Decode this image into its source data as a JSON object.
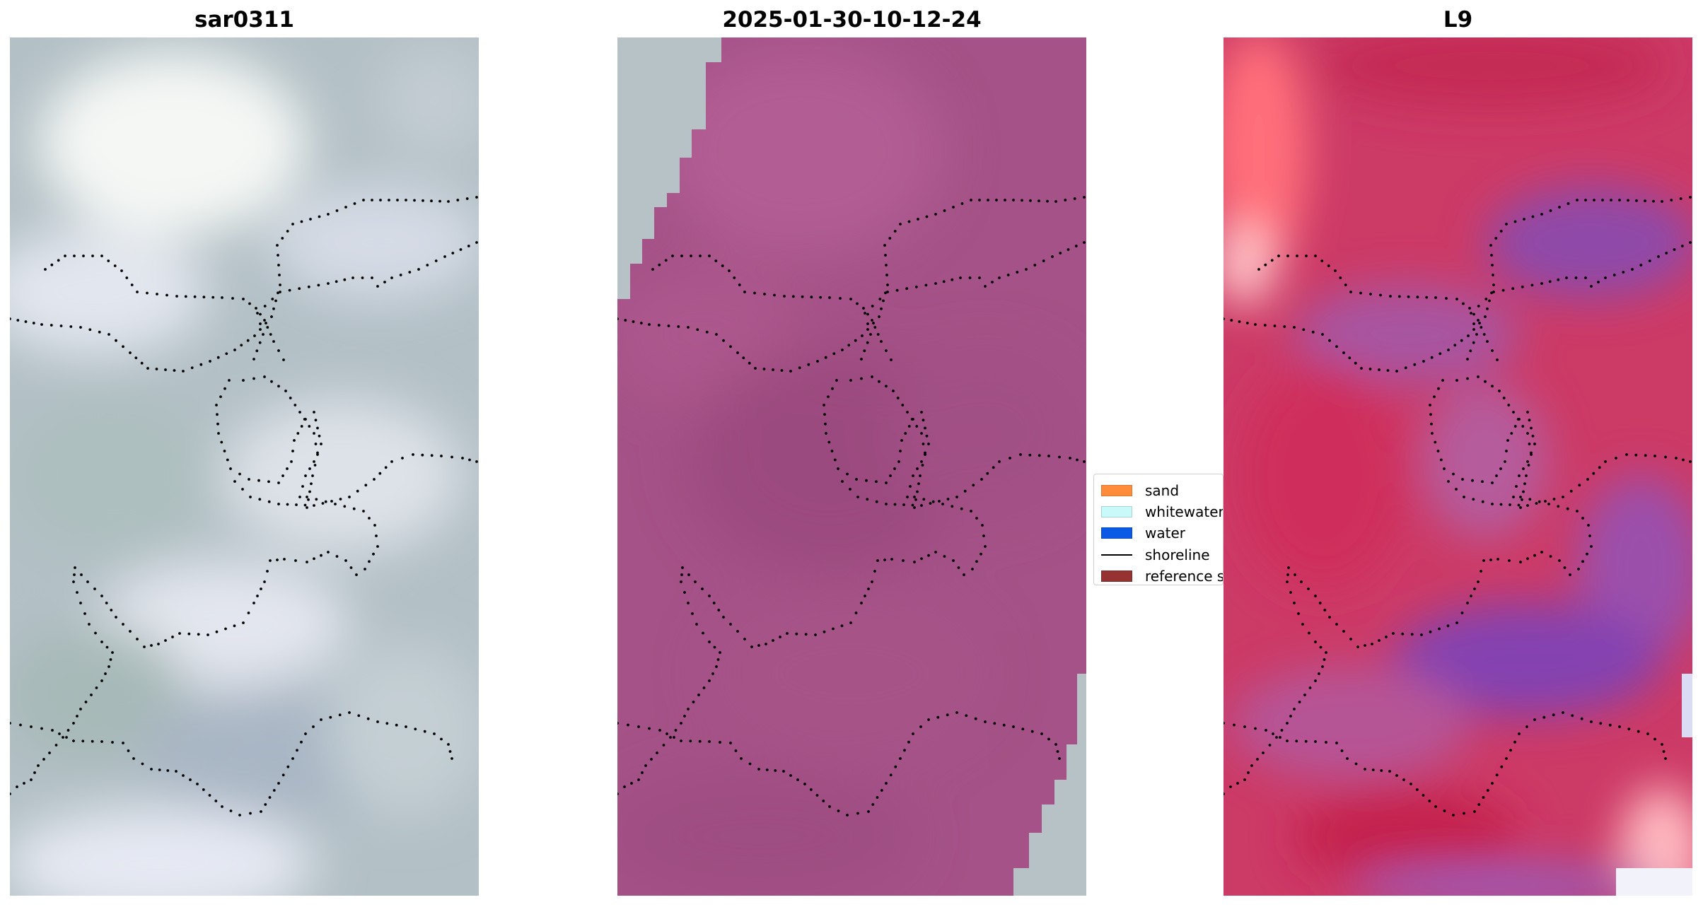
{
  "panels": [
    {
      "title": "sar0311",
      "kind": "greyscale-composite"
    },
    {
      "title": "2025-01-30-10-12-24",
      "kind": "classified-overlay"
    },
    {
      "title": "L9",
      "kind": "false-colour-composite"
    }
  ],
  "legend": {
    "items": [
      {
        "label": "sand",
        "color": "#ff8c3b",
        "type": "patch"
      },
      {
        "label": "whitewater",
        "color": "#c8fafa",
        "type": "patch"
      },
      {
        "label": "water",
        "color": "#0a5ae6",
        "type": "patch"
      },
      {
        "label": "shoreline",
        "color": "#000000",
        "type": "line"
      },
      {
        "label": "reference s",
        "color": "#963232",
        "type": "patch"
      }
    ]
  },
  "colors": {
    "panel1_base": "#b3c0c6",
    "panel2_base": "#a45287",
    "panel2_gray": "#b6c2c6",
    "panel3_base": "#cc3a66",
    "panel3_purple": "#8e4da9",
    "shoreline_points": "#000000"
  }
}
